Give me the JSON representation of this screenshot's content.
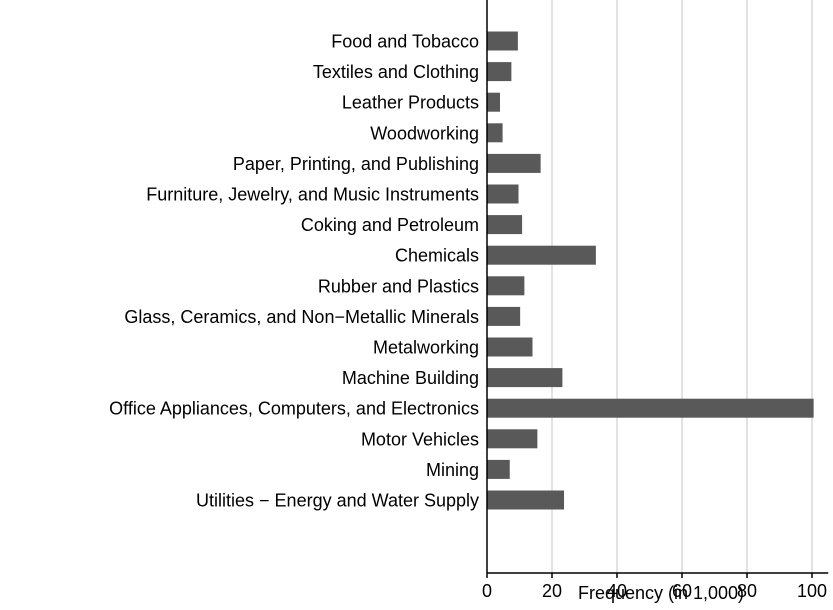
{
  "colors": {
    "bar": "#595959",
    "grid": "#d9d9d9",
    "axis": "#000000",
    "background": "#ffffff"
  },
  "chart_data": {
    "type": "bar",
    "orientation": "horizontal",
    "categories": [
      "Food and Tobacco",
      "Textiles and Clothing",
      "Leather Products",
      "Woodworking",
      "Paper, Printing, and Publishing",
      "Furniture, Jewelry, and Music Instruments",
      "Coking and Petroleum",
      "Chemicals",
      "Rubber and Plastics",
      "Glass, Ceramics, and Non−Metallic Minerals",
      "Metalworking",
      "Machine Building",
      "Office Appliances, Computers, and Electronics",
      "Motor Vehicles",
      "Mining",
      "Utilities − Energy and Water Supply"
    ],
    "values": [
      9.5,
      7.5,
      4.0,
      4.8,
      16.5,
      9.7,
      10.8,
      33.5,
      11.5,
      10.2,
      14.0,
      23.2,
      100.5,
      15.5,
      7.0,
      23.7
    ],
    "xlabel": "Frequency (in 1,000)",
    "ylabel": "",
    "title": "",
    "xlim": [
      0,
      105
    ],
    "xticks": [
      0,
      20,
      40,
      60,
      80,
      100
    ],
    "grid": "vertical"
  }
}
